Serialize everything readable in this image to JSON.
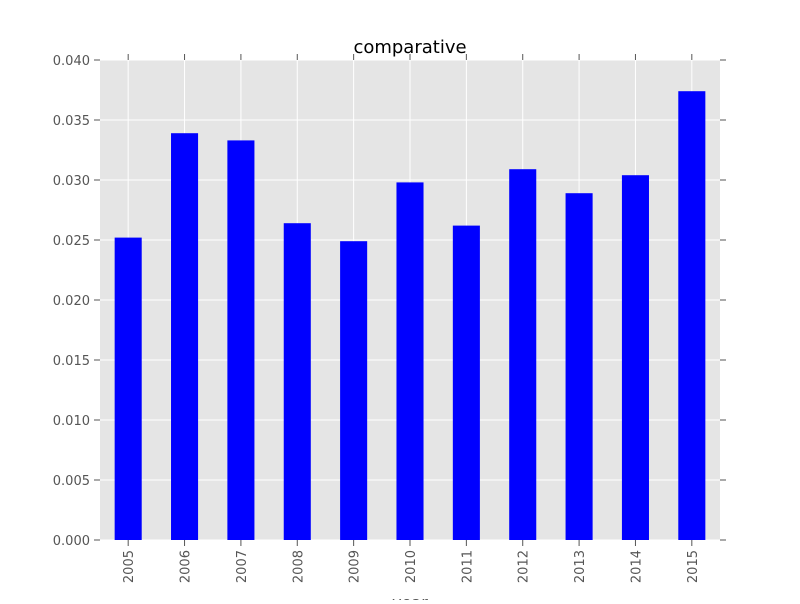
{
  "chart_data": {
    "type": "bar",
    "title": "comparative",
    "xlabel": "year",
    "ylabel": "",
    "categories": [
      "2005",
      "2006",
      "2007",
      "2008",
      "2009",
      "2010",
      "2011",
      "2012",
      "2013",
      "2014",
      "2015"
    ],
    "values": [
      0.0252,
      0.0339,
      0.0333,
      0.0264,
      0.0249,
      0.0298,
      0.0262,
      0.0309,
      0.0289,
      0.0304,
      0.0374
    ],
    "ylim": [
      0,
      0.04
    ],
    "yticks": [
      "0.000",
      "0.005",
      "0.010",
      "0.015",
      "0.020",
      "0.025",
      "0.030",
      "0.035",
      "0.040"
    ],
    "grid": true,
    "legend": "none",
    "colors": {
      "bar": "#0000ff",
      "plot_background": "#e5e5e5",
      "grid": "#ffffff",
      "tick_text": "#555555",
      "title_text": "#000000"
    }
  }
}
